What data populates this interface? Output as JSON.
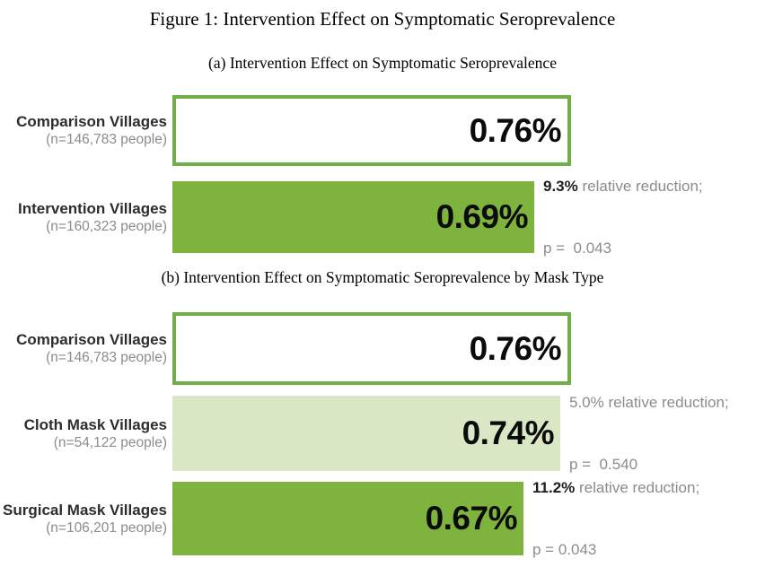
{
  "figure": {
    "title": "Figure 1: Intervention Effect on Symptomatic Seroprevalence"
  },
  "colors": {
    "solid_green": "#7eb43d",
    "light_green": "#d9e7c4",
    "outline_green": "#72ae4a",
    "label_dark": "#2d2d2d",
    "annotation_gray": "#8c8c8c",
    "value_black": "#0b0b0b"
  },
  "chart_data": {
    "type": "bar",
    "orientation": "horizontal",
    "title": "Figure 1: Intervention Effect on Symptomatic Seroprevalence",
    "unit": "% symptomatic seroprevalence",
    "axis_reference_max": 0.76,
    "panels": [
      {
        "subtitle": "(a) Intervention Effect on Symptomatic Seroprevalence",
        "bars": [
          {
            "label": "Comparison Villages",
            "sublabel": "(n=146,783 people)",
            "value": 0.76,
            "value_label": "0.76%",
            "fill": "outline-white"
          },
          {
            "label": "Intervention Villages",
            "sublabel": "(n=160,323 people)",
            "value": 0.69,
            "value_label": "0.69%",
            "fill": "solid-green",
            "annotation": {
              "highlight": "9.3%",
              "highlight_bold": true,
              "rest": " relative reduction;",
              "pvalue": "p =  0.043"
            }
          }
        ]
      },
      {
        "subtitle": "(b) Intervention Effect on Symptomatic Seroprevalence by Mask Type",
        "bars": [
          {
            "label": "Comparison Villages",
            "sublabel": "(n=146,783 people)",
            "value": 0.76,
            "value_label": "0.76%",
            "fill": "outline-white"
          },
          {
            "label": "Cloth Mask Villages",
            "sublabel": "(n=54,122 people)",
            "value": 0.74,
            "value_label": "0.74%",
            "fill": "light-green",
            "annotation": {
              "highlight": "5.0%",
              "highlight_bold": false,
              "rest": " relative reduction;",
              "pvalue": "p =  0.540"
            }
          },
          {
            "label": "Surgical Mask Villages",
            "sublabel": "(n=106,201 people)",
            "value": 0.67,
            "value_label": "0.67%",
            "fill": "solid-green",
            "annotation": {
              "highlight": "11.2%",
              "highlight_bold": true,
              "rest": " relative reduction;",
              "pvalue": "p = 0.043"
            }
          }
        ]
      }
    ]
  }
}
